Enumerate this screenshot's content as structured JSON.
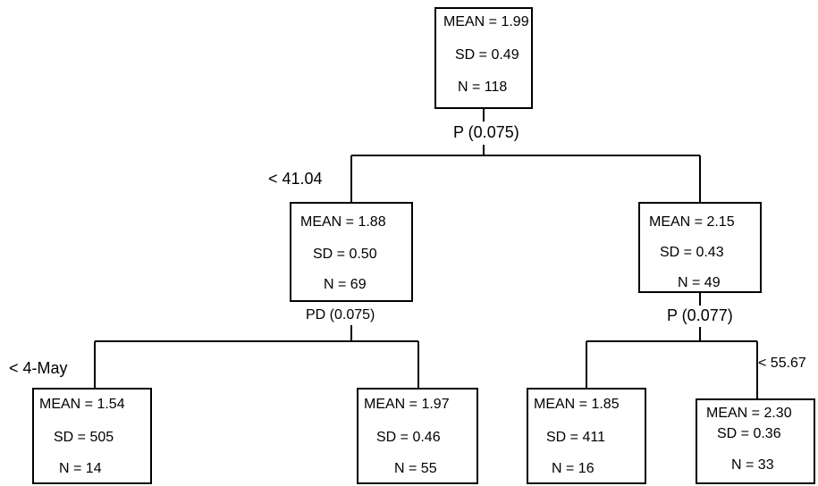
{
  "nodes": {
    "root": {
      "mean": "MEAN = 1.99",
      "sd": "SD = 0.49",
      "n": "N = 118"
    },
    "left": {
      "mean": "MEAN = 1.88",
      "sd": "SD = 0.50",
      "n": "N = 69"
    },
    "right": {
      "mean": "MEAN = 2.15",
      "sd": "SD = 0.43",
      "n": "N = 49"
    },
    "left_left": {
      "mean": "MEAN = 1.54",
      "sd": "SD = 505",
      "n": "N = 14"
    },
    "left_right": {
      "mean": "MEAN = 1.97",
      "sd": "SD = 0.46",
      "n": "N = 55"
    },
    "right_left": {
      "mean": "MEAN = 1.85",
      "sd": "SD = 411",
      "n": "N = 16"
    },
    "right_right": {
      "mean": "MEAN = 2.30",
      "sd": "SD = 0.36",
      "n": "N = 33"
    }
  },
  "splits": {
    "root": "P (0.075)",
    "left": "PD (0.075)",
    "right": "P (0.077)"
  },
  "branch_labels": {
    "root_left": "< 41.04",
    "left_left": "< 4-May",
    "right_right": "< 55.67"
  }
}
